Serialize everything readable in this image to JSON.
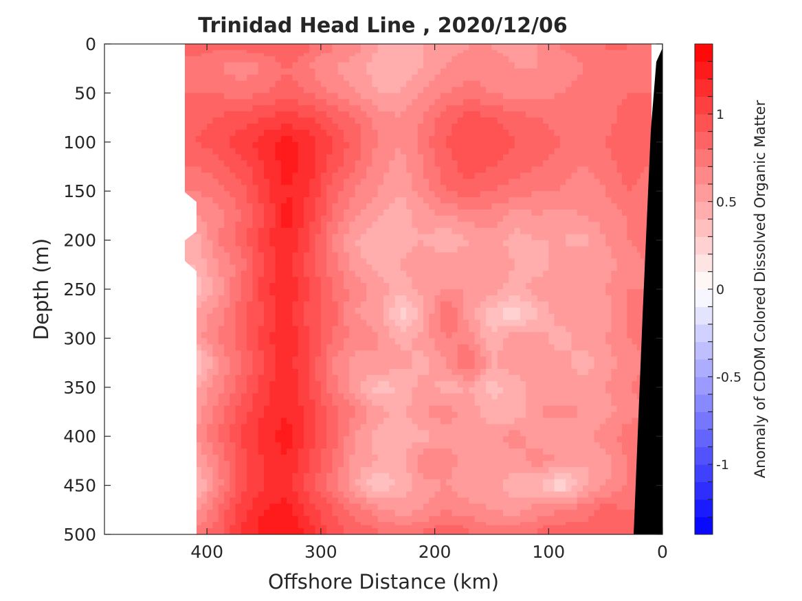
{
  "chart_data": {
    "type": "heatmap",
    "title": "Trinidad Head Line , 2020/12/06",
    "xlabel": "Offshore Distance (km)",
    "ylabel": "Depth (m)",
    "x_ticks": [
      "400",
      "300",
      "200",
      "100",
      "0"
    ],
    "x_tick_values": [
      400,
      300,
      200,
      100,
      0
    ],
    "y_ticks": [
      "0",
      "50",
      "100",
      "150",
      "200",
      "250",
      "300",
      "350",
      "400",
      "450",
      "500"
    ],
    "y_tick_values": [
      0,
      50,
      100,
      150,
      200,
      250,
      300,
      350,
      400,
      450,
      500
    ],
    "xlim": [
      490,
      0
    ],
    "ylim": [
      0,
      500
    ],
    "x_reversed": true,
    "y_reversed": true,
    "colorbar": {
      "label": "Anomaly of CDOM Colored Dissolved Organic Matter",
      "tick_labels": [
        "1",
        "0.5",
        "0",
        "-0.5",
        "-1"
      ],
      "tick_values": [
        1,
        0.5,
        0,
        -0.5,
        -1
      ],
      "range": [
        -1.4,
        1.4
      ],
      "n_levels": 28,
      "colormap": "blue-white-red",
      "max_color": "#ff0000",
      "mid_color": "#ffffff",
      "min_color": "#0000ff"
    },
    "data_extent_x": [
      420,
      10
    ],
    "bathymetry_color": "#000000",
    "x": [
      410,
      390,
      370,
      350,
      330,
      310,
      290,
      270,
      250,
      230,
      210,
      190,
      170,
      150,
      130,
      110,
      90,
      70,
      50,
      30,
      15
    ],
    "y": [
      0,
      25,
      50,
      75,
      100,
      125,
      150,
      175,
      200,
      225,
      250,
      275,
      300,
      325,
      350,
      375,
      400,
      425,
      450,
      475,
      500
    ],
    "z": [
      [
        0.85,
        0.8,
        0.8,
        0.85,
        0.9,
        0.8,
        0.7,
        0.65,
        0.5,
        0.45,
        0.5,
        0.55,
        0.6,
        0.6,
        0.55,
        0.6,
        0.7,
        0.75,
        0.8,
        0.8,
        0.75
      ],
      [
        0.75,
        0.7,
        0.65,
        0.7,
        0.8,
        0.7,
        0.6,
        0.55,
        0.45,
        0.4,
        0.5,
        0.6,
        0.65,
        0.65,
        0.6,
        0.6,
        0.65,
        0.7,
        0.75,
        0.8,
        0.75
      ],
      [
        0.8,
        0.8,
        0.75,
        0.8,
        0.85,
        0.8,
        0.7,
        0.6,
        0.5,
        0.5,
        0.6,
        0.7,
        0.75,
        0.7,
        0.65,
        0.65,
        0.7,
        0.75,
        0.75,
        0.8,
        0.8
      ],
      [
        0.85,
        0.9,
        0.95,
        1.0,
        1.05,
        1.0,
        0.9,
        0.8,
        0.65,
        0.6,
        0.7,
        0.85,
        0.95,
        0.9,
        0.85,
        0.8,
        0.75,
        0.7,
        0.75,
        0.85,
        0.8
      ],
      [
        0.9,
        0.95,
        1.05,
        1.15,
        1.25,
        1.15,
        1.0,
        0.85,
        0.7,
        0.6,
        0.75,
        0.9,
        1.0,
        0.95,
        0.9,
        0.85,
        0.8,
        0.75,
        0.8,
        0.9,
        0.85
      ],
      [
        0.8,
        0.85,
        0.95,
        1.1,
        1.25,
        1.15,
        0.95,
        0.8,
        0.65,
        0.55,
        0.7,
        0.85,
        0.95,
        0.9,
        0.85,
        0.8,
        0.75,
        0.7,
        0.75,
        0.85,
        0.8
      ],
      [
        0.7,
        0.75,
        0.85,
        1.05,
        1.2,
        1.1,
        0.85,
        0.7,
        0.6,
        0.5,
        0.65,
        0.8,
        0.85,
        0.8,
        0.75,
        0.7,
        0.7,
        0.65,
        0.7,
        0.8,
        0.75
      ],
      [
        0.6,
        0.65,
        0.8,
        1.0,
        1.25,
        1.05,
        0.8,
        0.6,
        0.5,
        0.45,
        0.55,
        0.6,
        0.65,
        0.65,
        0.55,
        0.6,
        0.55,
        0.6,
        0.65,
        0.7,
        0.7
      ],
      [
        0.45,
        0.7,
        0.85,
        1.05,
        1.2,
        1.0,
        0.7,
        0.5,
        0.4,
        0.45,
        0.5,
        0.4,
        0.5,
        0.55,
        0.45,
        0.5,
        0.5,
        0.45,
        0.6,
        0.7,
        0.75
      ],
      [
        0.4,
        0.6,
        0.75,
        1.0,
        1.15,
        0.95,
        0.75,
        0.55,
        0.45,
        0.5,
        0.55,
        0.6,
        0.55,
        0.6,
        0.5,
        0.45,
        0.55,
        0.6,
        0.55,
        0.65,
        0.7
      ],
      [
        0.35,
        0.55,
        0.8,
        1.05,
        1.2,
        1.0,
        0.8,
        0.65,
        0.55,
        0.45,
        0.55,
        0.6,
        0.6,
        0.55,
        0.45,
        0.55,
        0.6,
        0.55,
        0.6,
        0.7,
        0.7
      ],
      [
        0.5,
        0.65,
        0.85,
        1.0,
        1.15,
        0.95,
        0.85,
        0.6,
        0.55,
        0.25,
        0.45,
        0.85,
        0.55,
        0.35,
        0.2,
        0.4,
        0.55,
        0.6,
        0.55,
        0.7,
        0.75
      ],
      [
        0.55,
        0.7,
        0.85,
        1.05,
        1.2,
        1.0,
        0.8,
        0.65,
        0.6,
        0.45,
        0.55,
        0.7,
        0.65,
        0.4,
        0.6,
        0.55,
        0.45,
        0.55,
        0.6,
        0.7,
        0.75
      ],
      [
        0.25,
        0.6,
        0.8,
        1.0,
        1.15,
        1.0,
        0.7,
        0.55,
        0.6,
        0.55,
        0.45,
        0.6,
        0.85,
        0.5,
        0.55,
        0.5,
        0.55,
        0.45,
        0.55,
        0.65,
        0.7
      ],
      [
        0.5,
        0.65,
        0.85,
        1.05,
        1.2,
        1.0,
        0.75,
        0.55,
        0.35,
        0.4,
        0.55,
        0.45,
        0.5,
        0.35,
        0.45,
        0.55,
        0.5,
        0.55,
        0.6,
        0.7,
        0.75
      ],
      [
        0.55,
        0.75,
        0.95,
        1.1,
        1.2,
        1.05,
        0.85,
        0.7,
        0.55,
        0.45,
        0.6,
        0.65,
        0.55,
        0.45,
        0.4,
        0.6,
        0.65,
        0.6,
        0.55,
        0.65,
        0.7
      ],
      [
        0.6,
        0.8,
        1.0,
        1.15,
        1.25,
        1.05,
        0.85,
        0.6,
        0.45,
        0.5,
        0.45,
        0.55,
        0.6,
        0.55,
        0.65,
        0.55,
        0.5,
        0.55,
        0.65,
        0.75,
        0.8
      ],
      [
        0.5,
        0.7,
        0.95,
        1.1,
        1.2,
        1.0,
        0.8,
        0.55,
        0.5,
        0.4,
        0.7,
        0.65,
        0.55,
        0.5,
        0.55,
        0.65,
        0.6,
        0.5,
        0.55,
        0.7,
        0.75
      ],
      [
        0.35,
        0.65,
        0.95,
        1.1,
        1.15,
        0.95,
        0.75,
        0.5,
        0.3,
        0.45,
        0.55,
        0.6,
        0.5,
        0.55,
        0.45,
        0.4,
        0.2,
        0.45,
        0.6,
        0.7,
        0.75
      ],
      [
        0.55,
        0.8,
        1.05,
        1.2,
        1.25,
        1.05,
        0.9,
        0.75,
        0.65,
        0.55,
        0.6,
        0.7,
        0.65,
        0.6,
        0.55,
        0.65,
        0.7,
        0.75,
        0.85,
        0.8,
        0.8
      ],
      [
        0.75,
        0.85,
        1.1,
        1.25,
        1.3,
        1.15,
        0.95,
        0.85,
        0.8,
        0.75,
        0.8,
        0.85,
        0.8,
        0.75,
        0.75,
        0.8,
        0.85,
        0.85,
        0.85,
        0.8,
        0.8
      ]
    ]
  }
}
